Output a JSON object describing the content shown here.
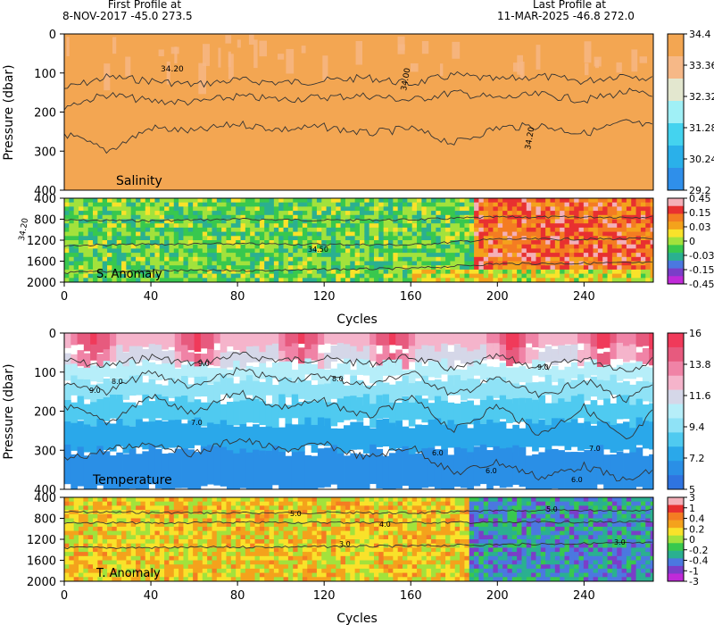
{
  "header": {
    "first_label": "First Profile at",
    "first_info": "8-NOV-2017   -45.0  273.5",
    "last_label": "Last Profile at",
    "last_info": "11-MAR-2025   -46.8  272.0"
  },
  "chart_data": [
    {
      "id": "salinity",
      "type": "heatmap",
      "title": "Salinity",
      "ylabel": "Pressure (dbar)",
      "xlabel": "",
      "xlim": [
        0,
        272
      ],
      "ylim": [
        400,
        0
      ],
      "yticks": [
        0,
        100,
        200,
        300,
        400
      ],
      "colorbar": {
        "labels": [
          "34.4",
          "33.36",
          "32.32",
          "31.28",
          "30.24",
          "29.2"
        ],
        "colors": [
          "#f3a652",
          "#f6b887",
          "#e3e7cf",
          "#a0f0f6",
          "#44d3ef",
          "#2ab0ea",
          "#2f8fea"
        ]
      },
      "contour_labels": [
        "34.20",
        "34.00",
        "34.20",
        "34.20"
      ],
      "contours": [
        {
          "level": 34.0,
          "x": [
            0,
            20,
            40,
            60,
            80,
            100,
            120,
            140,
            160,
            180,
            200,
            220,
            240,
            260,
            272
          ],
          "depth": [
            140,
            110,
            120,
            130,
            118,
            125,
            120,
            112,
            128,
            105,
            118,
            108,
            122,
            102,
            118
          ]
        },
        {
          "level": 34.1,
          "x": [
            0,
            20,
            40,
            60,
            80,
            100,
            120,
            140,
            160,
            180,
            200,
            220,
            240,
            260,
            272
          ],
          "depth": [
            185,
            155,
            172,
            175,
            160,
            168,
            162,
            158,
            170,
            150,
            165,
            155,
            170,
            148,
            160
          ]
        },
        {
          "level": 34.2,
          "x": [
            0,
            20,
            40,
            60,
            80,
            100,
            120,
            140,
            160,
            180,
            200,
            220,
            240,
            260,
            272
          ],
          "depth": [
            255,
            300,
            240,
            250,
            230,
            245,
            238,
            255,
            242,
            280,
            240,
            235,
            255,
            225,
            238
          ]
        }
      ]
    },
    {
      "id": "salinity-anomaly",
      "type": "heatmap",
      "title": "S. Anomaly",
      "xlabel": "Cycles",
      "xlim": [
        0,
        272
      ],
      "ylim": [
        2000,
        400
      ],
      "xticks": [
        0,
        40,
        80,
        120,
        160,
        200,
        240
      ],
      "yticks": [
        400,
        800,
        1200,
        1600,
        2000
      ],
      "colorbar": {
        "labels": [
          "0.45",
          "0.15",
          "0.03",
          "0",
          "-0.03",
          "-0.15",
          "-0.45"
        ],
        "colors": [
          "#f4b0b8",
          "#e83030",
          "#f47c22",
          "#f4a21c",
          "#f9e22a",
          "#a2e23c",
          "#38c84e",
          "#2ab090",
          "#4b78e0",
          "#7a3ec8",
          "#c02ad8"
        ]
      },
      "contour_labels": [
        "34.50"
      ],
      "regions": [
        {
          "x0": 0,
          "x1": 188,
          "y0": 400,
          "y1": 2000,
          "anomaly": -0.02
        },
        {
          "x0": 188,
          "x1": 272,
          "y0": 400,
          "y1": 1700,
          "anomaly": 0.1
        },
        {
          "x0": 160,
          "x1": 272,
          "y0": 1700,
          "y1": 2000,
          "anomaly": 0.02
        }
      ],
      "contours": [
        {
          "level": 34.4,
          "x": [
            0,
            40,
            80,
            120,
            160,
            200,
            240,
            272
          ],
          "depth": [
            820,
            830,
            800,
            820,
            810,
            760,
            760,
            760
          ]
        },
        {
          "level": 34.5,
          "x": [
            0,
            40,
            80,
            120,
            160,
            200,
            240,
            272
          ],
          "depth": [
            1300,
            1280,
            1270,
            1280,
            1290,
            1180,
            1180,
            1170
          ]
        },
        {
          "level": 34.6,
          "x": [
            0,
            40,
            80,
            120,
            160,
            200,
            240,
            272
          ],
          "depth": [
            1820,
            1780,
            1780,
            1760,
            1740,
            1650,
            1640,
            1630
          ]
        }
      ]
    },
    {
      "id": "temperature",
      "type": "heatmap",
      "title": "Temperature",
      "ylabel": "Pressure (dbar)",
      "xlabel": "",
      "xlim": [
        0,
        272
      ],
      "ylim": [
        400,
        0
      ],
      "yticks": [
        0,
        100,
        200,
        300,
        400
      ],
      "colorbar": {
        "labels": [
          "16",
          "13.8",
          "11.6",
          "9.4",
          "7.2",
          "5"
        ],
        "colors": [
          "#f03a5a",
          "#e75a7e",
          "#f083a6",
          "#f5b4cb",
          "#d5d7e8",
          "#b6eef9",
          "#8fe2f6",
          "#4fcaf0",
          "#2aa8ea",
          "#2a8fe6",
          "#2f74e0"
        ]
      },
      "contour_labels": [
        "9.0",
        "8.0",
        "9.0",
        "8.0",
        "7.0",
        "6.0",
        "6.0",
        "9.0",
        "7.0",
        "6.0"
      ],
      "warm_cycles": [
        12,
        60,
        108,
        150,
        205,
        248,
        270
      ],
      "contours": [
        {
          "level": 9.0,
          "x": [
            0,
            20,
            40,
            60,
            80,
            100,
            120,
            140,
            160,
            180,
            200,
            220,
            240,
            260,
            272
          ],
          "depth": [
            70,
            85,
            60,
            80,
            55,
            70,
            65,
            80,
            60,
            95,
            60,
            90,
            65,
            95,
            70
          ]
        },
        {
          "level": 8.0,
          "x": [
            0,
            20,
            40,
            60,
            80,
            100,
            120,
            140,
            160,
            180,
            200,
            220,
            240,
            260,
            272
          ],
          "depth": [
            125,
            150,
            100,
            140,
            95,
            120,
            110,
            135,
            100,
            160,
            115,
            165,
            120,
            175,
            130
          ]
        },
        {
          "level": 7.0,
          "x": [
            0,
            20,
            40,
            60,
            80,
            100,
            120,
            140,
            160,
            180,
            200,
            220,
            240,
            260,
            272
          ],
          "depth": [
            185,
            230,
            160,
            210,
            150,
            190,
            175,
            215,
            165,
            250,
            185,
            260,
            190,
            280,
            200
          ]
        },
        {
          "level": 6.0,
          "x": [
            0,
            20,
            40,
            60,
            80,
            100,
            120,
            140,
            160,
            180,
            200,
            220,
            240,
            260,
            272
          ],
          "depth": [
            325,
            300,
            280,
            310,
            270,
            300,
            285,
            320,
            290,
            360,
            330,
            370,
            340,
            380,
            350
          ]
        }
      ]
    },
    {
      "id": "temperature-anomaly",
      "type": "heatmap",
      "title": "T. Anomaly",
      "xlabel": "Cycles",
      "xlim": [
        0,
        272
      ],
      "ylim": [
        2000,
        400
      ],
      "xticks": [
        0,
        40,
        80,
        120,
        160,
        200,
        240
      ],
      "yticks": [
        400,
        800,
        1200,
        1600,
        2000
      ],
      "colorbar": {
        "labels": [
          "3",
          "1",
          "0.4",
          "0.2",
          "0",
          "-0.2",
          "-0.4",
          "-1",
          "-3"
        ],
        "colors": [
          "#f4b0b8",
          "#e83030",
          "#f47c22",
          "#f4a21c",
          "#f9e22a",
          "#a2e23c",
          "#38c84e",
          "#2ab090",
          "#4b78e0",
          "#7a3ec8",
          "#c02ad8"
        ]
      },
      "contour_labels": [
        "5.0",
        "4.0",
        "5.0",
        "3.0",
        "3.0"
      ],
      "regions": [
        {
          "x0": 0,
          "x1": 186,
          "y0": 400,
          "y1": 2000,
          "anomaly": 0.1
        },
        {
          "x0": 186,
          "x1": 272,
          "y0": 400,
          "y1": 2000,
          "anomaly": -0.2
        }
      ],
      "contours": [
        {
          "level": 5.0,
          "x": [
            0,
            40,
            80,
            120,
            160,
            200,
            240,
            272
          ],
          "depth": [
            680,
            690,
            700,
            690,
            700,
            660,
            650,
            640
          ]
        },
        {
          "level": 4.0,
          "x": [
            0,
            40,
            80,
            120,
            160,
            200,
            240,
            272
          ],
          "depth": [
            880,
            890,
            880,
            880,
            880,
            880,
            870,
            870
          ]
        },
        {
          "level": 3.0,
          "x": [
            0,
            40,
            80,
            120,
            160,
            200,
            240,
            272
          ],
          "depth": [
            1360,
            1360,
            1350,
            1340,
            1330,
            1300,
            1280,
            1270
          ]
        }
      ]
    }
  ]
}
